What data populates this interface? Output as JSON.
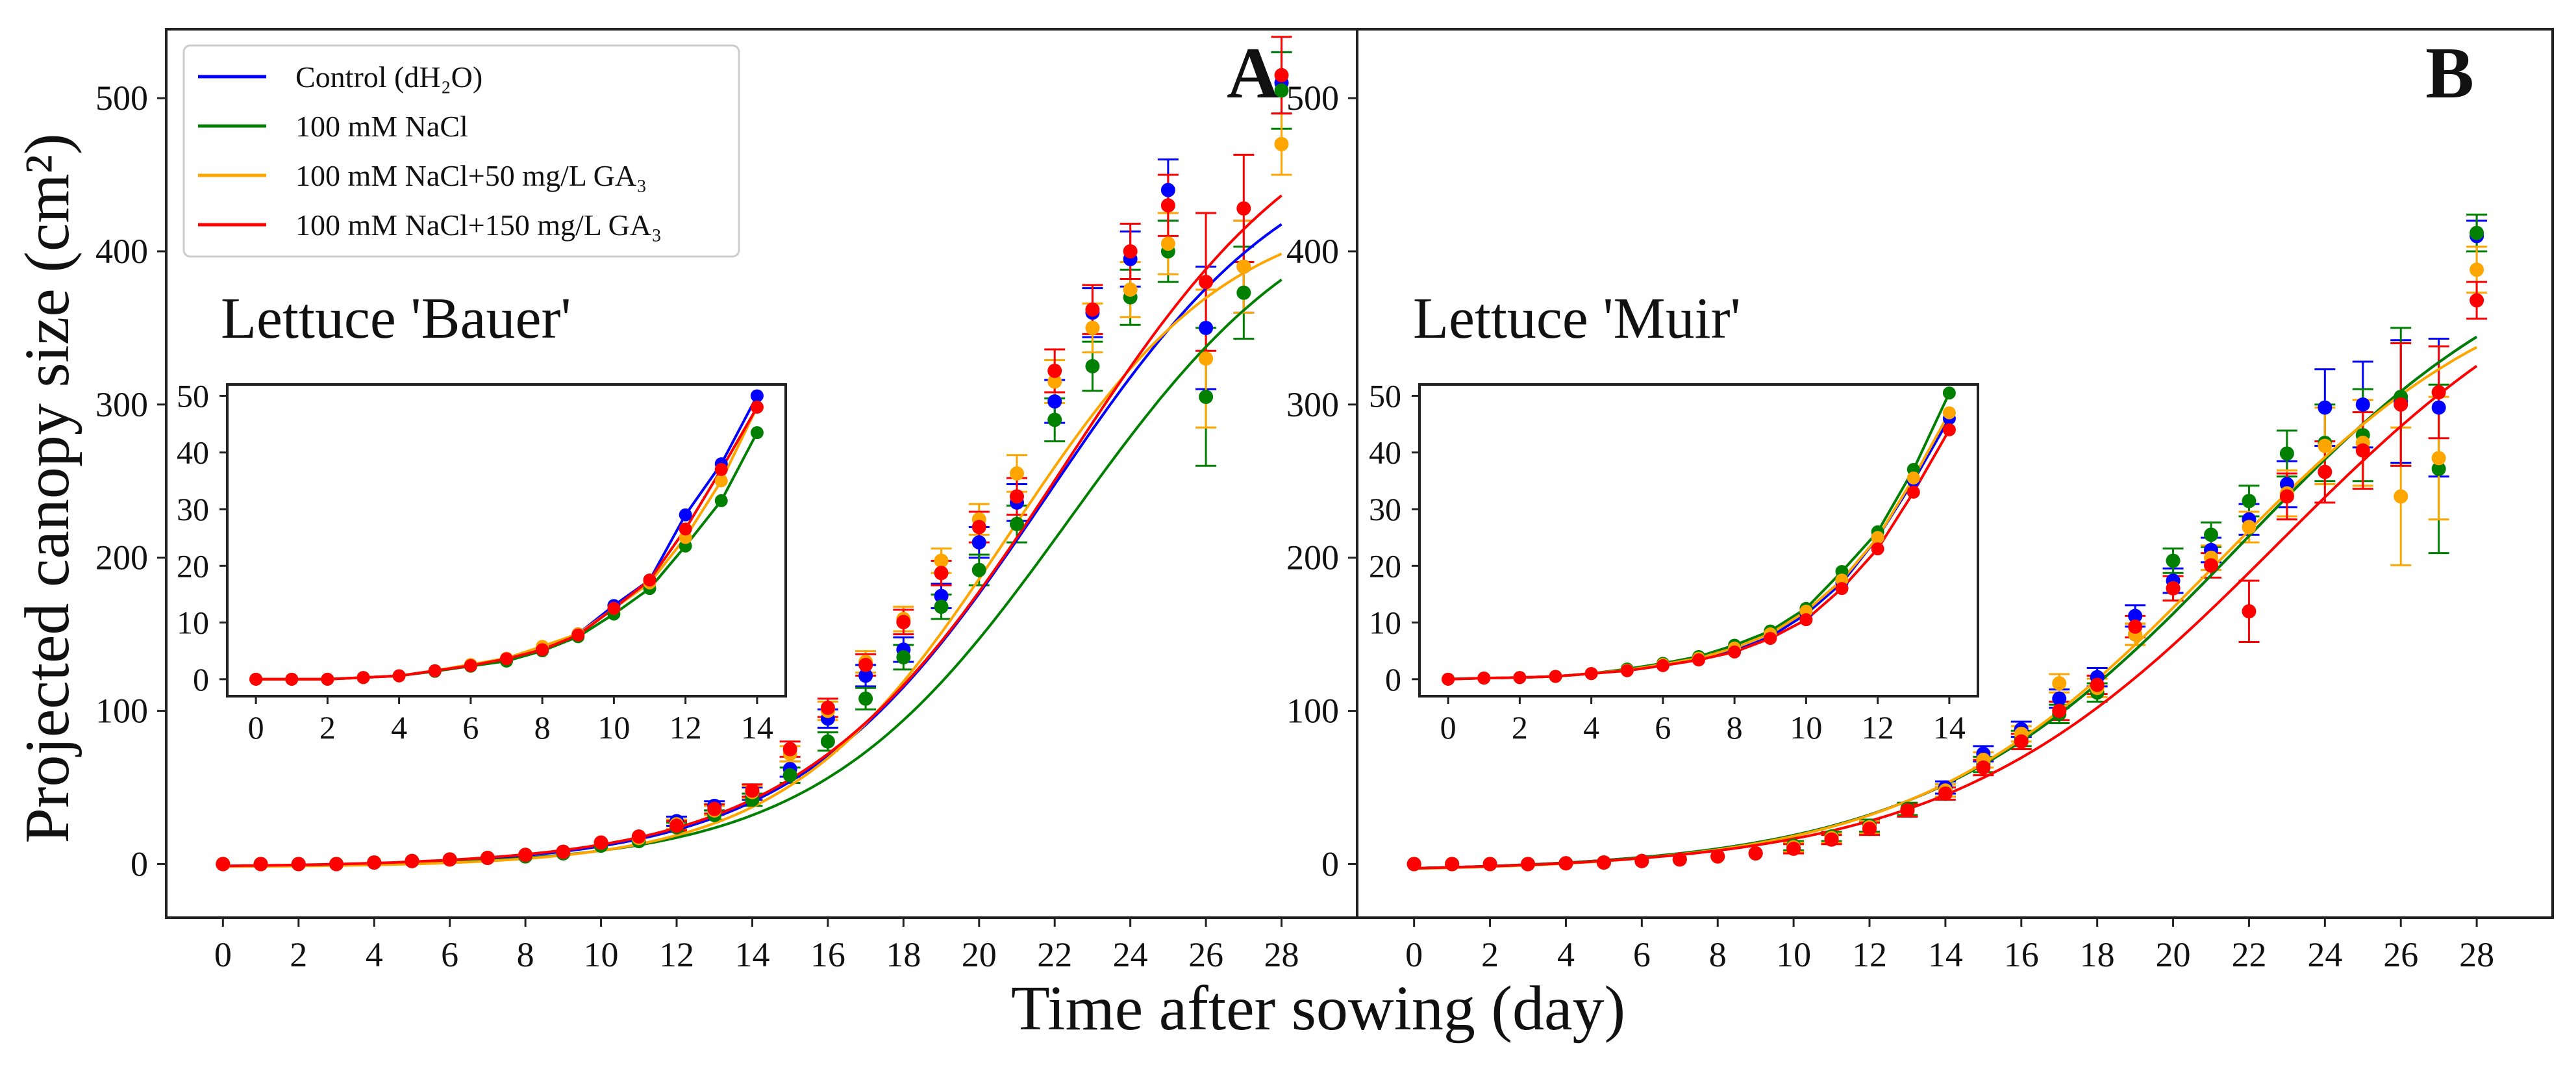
{
  "figure": {
    "ylabel": "Projected canopy size (cm²)",
    "xlabel": "Time after sowing (day)"
  },
  "legend": [
    {
      "label": "Control (dH₂O)",
      "color": "#0000FF"
    },
    {
      "label": "100 mM NaCl",
      "color": "#008000"
    },
    {
      "label": "100 mM NaCl+50 mg/L GA₃",
      "color": "#FFA500"
    },
    {
      "label": "100 mM NaCl+150 mg/L GA₃",
      "color": "#FF0000"
    }
  ],
  "chart_data": [
    {
      "type": "scatter",
      "panel_letter": "A",
      "title": "Lettuce 'Bauer'",
      "xlim": [
        -1.5,
        30
      ],
      "ylim": [
        -35,
        545
      ],
      "xticks": [
        0,
        2,
        4,
        6,
        8,
        10,
        12,
        14,
        16,
        18,
        20,
        22,
        24,
        26,
        28
      ],
      "yticks": [
        0,
        100,
        200,
        300,
        400,
        500
      ],
      "x": [
        0,
        1,
        2,
        3,
        4,
        5,
        6,
        7,
        8,
        9,
        10,
        11,
        12,
        13,
        14,
        15,
        16,
        17,
        18,
        19,
        20,
        21,
        22,
        23,
        24,
        25,
        26,
        27,
        28
      ],
      "series": [
        {
          "name": "Control (dH₂O)",
          "color": "#0000FF",
          "values": [
            0,
            0,
            0,
            0,
            1,
            2,
            3,
            4,
            6,
            8,
            14,
            17,
            28,
            38,
            46,
            62,
            95,
            123,
            140,
            175,
            210,
            236,
            302,
            360,
            395,
            440,
            350,
            390,
            510
          ],
          "errors": [
            1,
            1,
            1,
            1,
            1,
            1,
            1,
            1,
            1,
            1,
            2,
            2,
            3,
            3,
            4,
            5,
            6,
            7,
            8,
            8,
            10,
            12,
            14,
            16,
            18,
            20,
            40,
            30,
            20
          ],
          "fit": {
            "K": 485,
            "r": 0.3,
            "x0": 21.8,
            "offset": -2
          }
        },
        {
          "name": "100 mM NaCl",
          "color": "#008000",
          "values": [
            0,
            0,
            0,
            0,
            1,
            2,
            3,
            4,
            5,
            7,
            12,
            15,
            24,
            32,
            42,
            58,
            80,
            108,
            135,
            168,
            192,
            222,
            290,
            325,
            370,
            400,
            305,
            373,
            505
          ],
          "errors": [
            1,
            1,
            1,
            1,
            1,
            1,
            1,
            1,
            1,
            1,
            2,
            2,
            3,
            3,
            4,
            5,
            6,
            7,
            8,
            8,
            10,
            12,
            14,
            16,
            18,
            20,
            45,
            30,
            25
          ],
          "fit": {
            "K": 455,
            "r": 0.3,
            "x0": 22.4,
            "offset": -2
          }
        },
        {
          "name": "100 mM NaCl+50 mg/L GA₃",
          "color": "#FFA500",
          "values": [
            0,
            0,
            0,
            0,
            1,
            2,
            3,
            4,
            6,
            8,
            14,
            17,
            26,
            35,
            47,
            72,
            100,
            132,
            160,
            198,
            225,
            255,
            315,
            350,
            375,
            405,
            330,
            390,
            470
          ],
          "errors": [
            1,
            1,
            1,
            1,
            1,
            1,
            1,
            1,
            1,
            1,
            2,
            2,
            3,
            3,
            4,
            5,
            6,
            7,
            8,
            8,
            10,
            12,
            14,
            16,
            18,
            20,
            45,
            30,
            20
          ],
          "fit": {
            "K": 435,
            "r": 0.34,
            "x0": 20.8,
            "offset": -2
          }
        },
        {
          "name": "100 mM NaCl+150 mg/L GA₃",
          "color": "#FF0000",
          "values": [
            0,
            0,
            0,
            0,
            1,
            2,
            3,
            4,
            6,
            8,
            14,
            18,
            25,
            36,
            48,
            75,
            102,
            130,
            158,
            190,
            220,
            240,
            322,
            362,
            400,
            430,
            380,
            428,
            515
          ],
          "errors": [
            1,
            1,
            1,
            1,
            1,
            1,
            1,
            1,
            1,
            1,
            2,
            2,
            3,
            3,
            4,
            5,
            6,
            7,
            8,
            8,
            10,
            12,
            14,
            16,
            18,
            20,
            45,
            35,
            25
          ],
          "fit": {
            "K": 520,
            "r": 0.29,
            "x0": 22.2,
            "offset": -2
          }
        }
      ],
      "inset": {
        "xlim": [
          -0.8,
          14.8
        ],
        "ylim": [
          -3,
          52
        ],
        "xticks": [
          0,
          2,
          4,
          6,
          8,
          10,
          12,
          14
        ],
        "yticks": [
          0,
          10,
          20,
          30,
          40,
          50
        ],
        "x": [
          0,
          1,
          2,
          3,
          4,
          5,
          6,
          7,
          8,
          9,
          10,
          11,
          12,
          13,
          14
        ],
        "series": [
          {
            "name": "Control (dH₂O)",
            "values": [
              0,
              0,
              0,
              0.3,
              0.6,
              1.4,
              2.5,
              3.5,
              5.5,
              8,
              13,
              17.5,
              29,
              38,
              50
            ]
          },
          {
            "name": "100 mM NaCl",
            "values": [
              0,
              0,
              0,
              0.3,
              0.6,
              1.4,
              2.3,
              3.2,
              5,
              7.5,
              11.5,
              16,
              23.5,
              31.5,
              43.5
            ]
          },
          {
            "name": "100 mM NaCl+50 mg/L GA₃",
            "values": [
              0,
              0,
              0,
              0.3,
              0.6,
              1.5,
              2.6,
              3.7,
              5.8,
              8,
              12.5,
              17,
              25,
              35,
              48
            ]
          },
          {
            "name": "100 mM NaCl+150 mg/L GA₃",
            "values": [
              0,
              0,
              0,
              0.3,
              0.6,
              1.5,
              2.4,
              3.6,
              5.2,
              7.8,
              12.5,
              17.5,
              26.5,
              37,
              48
            ]
          }
        ]
      }
    },
    {
      "type": "scatter",
      "panel_letter": "B",
      "title": "Lettuce 'Muir'",
      "xlim": [
        -1.5,
        30
      ],
      "ylim": [
        -35,
        545
      ],
      "xticks": [
        0,
        2,
        4,
        6,
        8,
        10,
        12,
        14,
        16,
        18,
        20,
        22,
        24,
        26,
        28
      ],
      "yticks": [
        0,
        100,
        200,
        300,
        400,
        500
      ],
      "x": [
        0,
        1,
        2,
        3,
        4,
        5,
        6,
        7,
        8,
        9,
        10,
        11,
        12,
        13,
        14,
        15,
        16,
        17,
        18,
        19,
        20,
        21,
        22,
        23,
        24,
        25,
        26,
        27,
        28
      ],
      "series": [
        {
          "name": "Control (dH₂O)",
          "color": "#0000FF",
          "values": [
            0,
            0,
            0,
            0,
            0.5,
            1,
            2,
            3,
            5,
            7,
            11,
            17,
            25,
            35,
            50,
            72,
            88,
            108,
            122,
            162,
            185,
            205,
            225,
            248,
            298,
            300,
            302,
            298,
            410
          ],
          "errors": [
            2,
            2,
            2,
            2,
            2,
            2,
            2,
            2,
            2,
            2,
            3,
            3,
            4,
            4,
            4,
            5,
            5,
            6,
            6,
            7,
            8,
            8,
            10,
            15,
            25,
            28,
            40,
            45,
            10
          ],
          "fit": {
            "K": 428,
            "r": 0.24,
            "x0": 21.8,
            "offset": -5
          }
        },
        {
          "name": "100 mM NaCl",
          "color": "#008000",
          "values": [
            0,
            0,
            0,
            0,
            0.5,
            1,
            2,
            3,
            5,
            7,
            12,
            18,
            25,
            36,
            48,
            65,
            82,
            98,
            112,
            150,
            198,
            215,
            237,
            268,
            275,
            280,
            305,
            258,
            412
          ],
          "errors": [
            2,
            2,
            2,
            2,
            2,
            2,
            2,
            2,
            2,
            2,
            3,
            3,
            4,
            4,
            4,
            5,
            5,
            6,
            6,
            7,
            8,
            8,
            10,
            15,
            25,
            30,
            45,
            55,
            12
          ],
          "fit": {
            "K": 428,
            "r": 0.24,
            "x0": 21.8,
            "offset": -5
          }
        },
        {
          "name": "100 mM NaCl+50 mg/L GA₃",
          "color": "#FFA500",
          "values": [
            0,
            0,
            0,
            0,
            0.5,
            1,
            2,
            3,
            5,
            7,
            11,
            17,
            24,
            35,
            48,
            68,
            85,
            118,
            115,
            150,
            180,
            200,
            220,
            242,
            273,
            275,
            240,
            265,
            388
          ],
          "errors": [
            2,
            2,
            2,
            2,
            2,
            2,
            2,
            2,
            2,
            2,
            3,
            3,
            4,
            4,
            4,
            5,
            5,
            6,
            6,
            7,
            8,
            8,
            10,
            15,
            25,
            28,
            45,
            40,
            15
          ],
          "fit": {
            "K": 405,
            "r": 0.25,
            "x0": 21.2,
            "offset": -5
          }
        },
        {
          "name": "100 mM NaCl+150 mg/L GA₃",
          "color": "#FF0000",
          "values": [
            0,
            0,
            0,
            0,
            0.5,
            1,
            2,
            3,
            5,
            7,
            10,
            16,
            23,
            35,
            46,
            63,
            80,
            100,
            117,
            155,
            180,
            195,
            165,
            240,
            256,
            270,
            300,
            308,
            368
          ],
          "errors": [
            2,
            2,
            2,
            2,
            2,
            2,
            2,
            2,
            2,
            2,
            3,
            3,
            4,
            4,
            4,
            5,
            5,
            6,
            6,
            7,
            8,
            8,
            20,
            15,
            20,
            25,
            40,
            30,
            12
          ],
          "fit": {
            "K": 430,
            "r": 0.23,
            "x0": 22.8,
            "offset": -5
          }
        }
      ],
      "inset": {
        "xlim": [
          -0.8,
          14.8
        ],
        "ylim": [
          -3,
          52
        ],
        "xticks": [
          0,
          2,
          4,
          6,
          8,
          10,
          12,
          14
        ],
        "yticks": [
          0,
          10,
          20,
          30,
          40,
          50
        ],
        "x": [
          0,
          1,
          2,
          3,
          4,
          5,
          6,
          7,
          8,
          9,
          10,
          11,
          12,
          13,
          14
        ],
        "series": [
          {
            "name": "Control (dH₂O)",
            "values": [
              0,
              0.2,
              0.3,
              0.5,
              1,
              1.6,
              2.5,
              3.5,
              5,
              7.5,
              11.5,
              17,
              25,
              35,
              46
            ]
          },
          {
            "name": "100 mM NaCl",
            "values": [
              0,
              0.2,
              0.3,
              0.5,
              1,
              1.8,
              2.8,
              4,
              6,
              8.5,
              12.5,
              19,
              26,
              37,
              50.5
            ]
          },
          {
            "name": "100 mM NaCl+50 mg/L GA₃",
            "values": [
              0,
              0.2,
              0.3,
              0.5,
              1,
              1.6,
              2.6,
              3.7,
              5.5,
              8,
              12,
              17.5,
              25,
              35.5,
              47
            ]
          },
          {
            "name": "100 mM NaCl+150 mg/L GA₃",
            "values": [
              0,
              0.2,
              0.3,
              0.5,
              1,
              1.5,
              2.4,
              3.4,
              4.8,
              7.2,
              10.5,
              16,
              23,
              33,
              44
            ]
          }
        ]
      }
    }
  ]
}
